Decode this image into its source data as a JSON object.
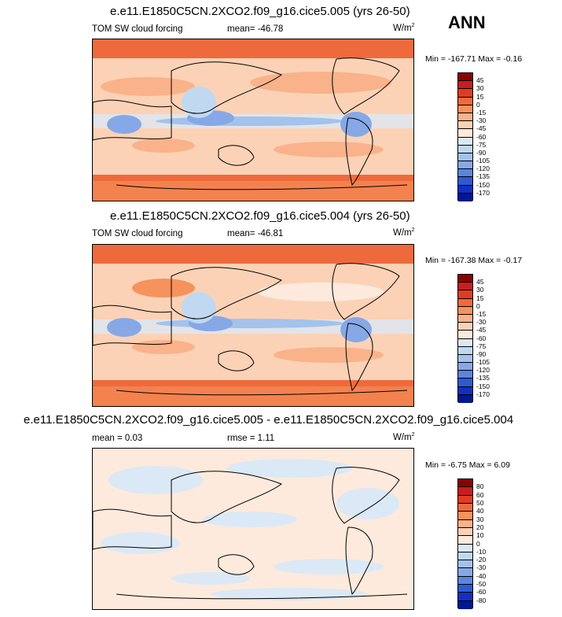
{
  "season": "ANN",
  "units_base": "W/m",
  "units_exp": "2",
  "panels": [
    {
      "title": "e.e11.E1850C5CN.2XCO2.f09_g16.cice5.005 (yrs 26-50)",
      "variable": "TOM SW cloud forcing",
      "stat_label": "mean=",
      "stat_value": "-46.78",
      "minmax": "Min = -167.71 Max =  -0.16",
      "levels": [
        "45",
        "30",
        "15",
        "0",
        "-15",
        "-30",
        "-45",
        "-60",
        "-75",
        "-90",
        "-105",
        "-120",
        "-135",
        "-150",
        "-170"
      ],
      "colors": [
        "#8b0000",
        "#c81e1e",
        "#e03c24",
        "#ee6a3c",
        "#f6925c",
        "#fab28a",
        "#fcd2b6",
        "#fdeadc",
        "#dbe9f6",
        "#c0d9f1",
        "#a3c2ec",
        "#86a8e6",
        "#5a86df",
        "#2e5ad6",
        "#1030c4",
        "#001890"
      ]
    },
    {
      "title": "e.e11.E1850C5CN.2XCO2.f09_g16.cice5.004 (yrs 26-50)",
      "variable": "TOM SW cloud forcing",
      "stat_label": "mean=",
      "stat_value": "-46.81",
      "minmax": "Min = -167.38 Max =  -0.17",
      "levels": [
        "45",
        "30",
        "15",
        "0",
        "-15",
        "-30",
        "-45",
        "-60",
        "-75",
        "-90",
        "-105",
        "-120",
        "-135",
        "-150",
        "-170"
      ],
      "colors": [
        "#8b0000",
        "#c81e1e",
        "#e03c24",
        "#ee6a3c",
        "#f6925c",
        "#fab28a",
        "#fcd2b6",
        "#fdeadc",
        "#dbe9f6",
        "#c0d9f1",
        "#a3c2ec",
        "#86a8e6",
        "#5a86df",
        "#2e5ad6",
        "#1030c4",
        "#001890"
      ]
    },
    {
      "title": "e.e11.E1850C5CN.2XCO2.f09_g16.cice5.005 - e.e11.E1850C5CN.2XCO2.f09_g16.cice5.004",
      "variable": "",
      "stat_label": "mean =",
      "stat_value": "0.03",
      "stat2_label": "rmse =",
      "stat2_value": "1.11",
      "minmax": "Min =  -6.75 Max =   6.09",
      "levels": [
        "80",
        "60",
        "50",
        "40",
        "30",
        "20",
        "10",
        "0",
        "-10",
        "-20",
        "-30",
        "-40",
        "-50",
        "-60",
        "-80"
      ],
      "colors": [
        "#8b0000",
        "#c81e1e",
        "#e03c24",
        "#ee6a3c",
        "#f6925c",
        "#fab28a",
        "#fcd2b6",
        "#fdeadc",
        "#dbe9f6",
        "#c0d9f1",
        "#a3c2ec",
        "#86a8e6",
        "#5a86df",
        "#2e5ad6",
        "#1030c4",
        "#001890"
      ]
    }
  ]
}
